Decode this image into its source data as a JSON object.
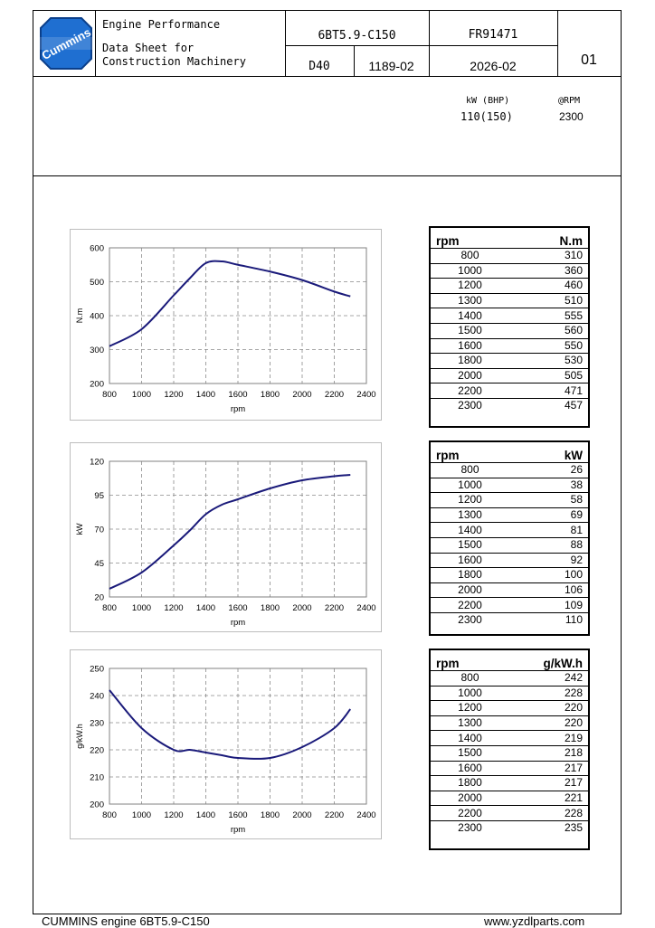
{
  "header": {
    "logo_text": "Cummins",
    "title_line1": "Engine Performance",
    "title_line2": "Data Sheet for",
    "title_line3": "Construction Machinery",
    "model": "6BT5.9-C150",
    "doc_number": "FR91471",
    "code": "D40",
    "ref": "1189-02",
    "date": "2026-02",
    "page": "01"
  },
  "ratings": {
    "power_label": "kW (BHP)",
    "rpm_label": "@RPM",
    "power_value": "110(150)",
    "rpm_value": "2300"
  },
  "tables": [
    {
      "col1": "rpm",
      "col2": "N.m",
      "rows": [
        [
          "800",
          "310"
        ],
        [
          "1000",
          "360"
        ],
        [
          "1200",
          "460"
        ],
        [
          "1300",
          "510"
        ],
        [
          "1400",
          "555"
        ],
        [
          "1500",
          "560"
        ],
        [
          "1600",
          "550"
        ],
        [
          "1800",
          "530"
        ],
        [
          "2000",
          "505"
        ],
        [
          "2200",
          "471"
        ],
        [
          "2300",
          "457"
        ]
      ]
    },
    {
      "col1": "rpm",
      "col2": "kW",
      "rows": [
        [
          "800",
          "26"
        ],
        [
          "1000",
          "38"
        ],
        [
          "1200",
          "58"
        ],
        [
          "1300",
          "69"
        ],
        [
          "1400",
          "81"
        ],
        [
          "1500",
          "88"
        ],
        [
          "1600",
          "92"
        ],
        [
          "1800",
          "100"
        ],
        [
          "2000",
          "106"
        ],
        [
          "2200",
          "109"
        ],
        [
          "2300",
          "110"
        ]
      ]
    },
    {
      "col1": "rpm",
      "col2": "g/kW.h",
      "rows": [
        [
          "800",
          "242"
        ],
        [
          "1000",
          "228"
        ],
        [
          "1200",
          "220"
        ],
        [
          "1300",
          "220"
        ],
        [
          "1400",
          "219"
        ],
        [
          "1500",
          "218"
        ],
        [
          "1600",
          "217"
        ],
        [
          "1800",
          "217"
        ],
        [
          "2000",
          "221"
        ],
        [
          "2200",
          "228"
        ],
        [
          "2300",
          "235"
        ]
      ]
    }
  ],
  "chart_data": [
    {
      "type": "line",
      "title": "",
      "xlabel": "rpm",
      "ylabel": "N.m",
      "xlim": [
        800,
        2400
      ],
      "ylim": [
        200,
        600
      ],
      "xticks": [
        800,
        1000,
        1200,
        1400,
        1600,
        1800,
        2000,
        2200,
        2400
      ],
      "yticks": [
        200,
        300,
        400,
        500,
        600
      ],
      "grid": true,
      "line_color": "#1a1a7a",
      "x": [
        800,
        1000,
        1200,
        1300,
        1400,
        1500,
        1600,
        1800,
        2000,
        2200,
        2300
      ],
      "y": [
        310,
        360,
        460,
        510,
        555,
        560,
        550,
        530,
        505,
        471,
        457
      ]
    },
    {
      "type": "line",
      "title": "",
      "xlabel": "rpm",
      "ylabel": "kW",
      "xlim": [
        800,
        2400
      ],
      "ylim": [
        20,
        120
      ],
      "xticks": [
        800,
        1000,
        1200,
        1400,
        1600,
        1800,
        2000,
        2200,
        2400
      ],
      "yticks": [
        20,
        45,
        70,
        95,
        120
      ],
      "grid": true,
      "line_color": "#1a1a7a",
      "x": [
        800,
        1000,
        1200,
        1300,
        1400,
        1500,
        1600,
        1800,
        2000,
        2200,
        2300
      ],
      "y": [
        26,
        38,
        58,
        69,
        81,
        88,
        92,
        100,
        106,
        109,
        110
      ]
    },
    {
      "type": "line",
      "title": "",
      "xlabel": "rpm",
      "ylabel": "g/kW.h",
      "xlim": [
        800,
        2400
      ],
      "ylim": [
        200,
        250
      ],
      "xticks": [
        800,
        1000,
        1200,
        1400,
        1600,
        1800,
        2000,
        2200,
        2400
      ],
      "yticks": [
        200,
        210,
        220,
        230,
        240,
        250
      ],
      "grid": true,
      "line_color": "#1a1a7a",
      "x": [
        800,
        1000,
        1200,
        1300,
        1400,
        1500,
        1600,
        1800,
        2000,
        2200,
        2300
      ],
      "y": [
        242,
        228,
        220,
        220,
        219,
        218,
        217,
        217,
        221,
        228,
        235
      ]
    }
  ],
  "footer": {
    "left": "CUMMINS engine 6BT5.9-C150",
    "right": "www.yzdlparts.com"
  }
}
